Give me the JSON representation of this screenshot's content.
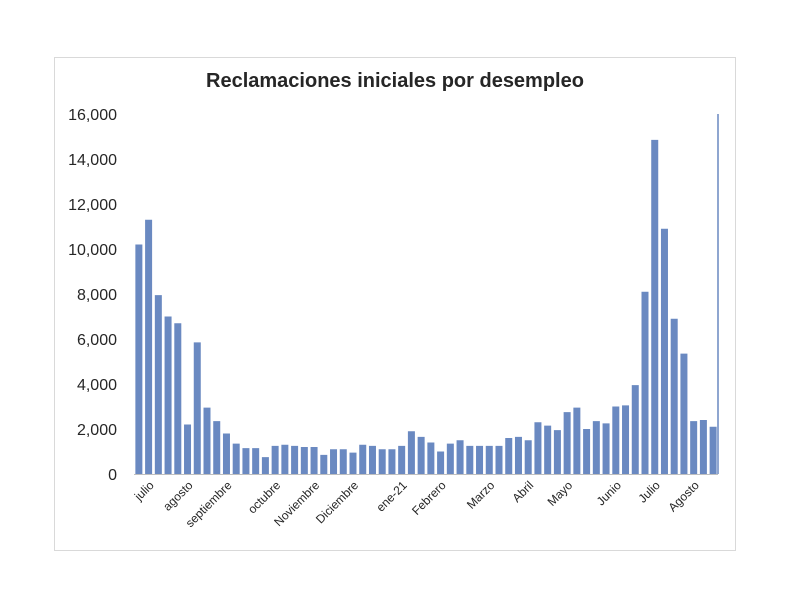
{
  "chart_data": {
    "type": "bar",
    "title": "Reclamaciones iniciales por desempleo",
    "xlabel": "",
    "ylabel": "",
    "ylim": [
      0,
      16000
    ],
    "yticks": [
      0,
      2000,
      4000,
      6000,
      8000,
      10000,
      12000,
      14000,
      16000
    ],
    "ytick_labels": [
      "0",
      "2,000",
      "4,000",
      "6,000",
      "8,000",
      "10,000",
      "12,000",
      "14,000",
      "16,000"
    ],
    "grid": false,
    "legend": "none",
    "bar_color": "#6a89c1",
    "month_labels": [
      {
        "label": "julio",
        "index": 1
      },
      {
        "label": "agosto",
        "index": 5
      },
      {
        "label": "septiembre",
        "index": 9
      },
      {
        "label": "octubre",
        "index": 14
      },
      {
        "label": "Noviembre",
        "index": 18
      },
      {
        "label": "Diciembre",
        "index": 22
      },
      {
        "label": "ene-21",
        "index": 27
      },
      {
        "label": "Febrero",
        "index": 31
      },
      {
        "label": "Marzo",
        "index": 36
      },
      {
        "label": "Abril",
        "index": 40
      },
      {
        "label": "Mayo",
        "index": 44
      },
      {
        "label": "Junio",
        "index": 49
      },
      {
        "label": "Julio",
        "index": 53
      },
      {
        "label": "Agosto",
        "index": 57
      }
    ],
    "values": [
      10200,
      11300,
      7950,
      7000,
      6700,
      2200,
      5850,
      2950,
      2350,
      1800,
      1350,
      1150,
      1150,
      750,
      1250,
      1300,
      1250,
      1200,
      1200,
      850,
      1100,
      1100,
      950,
      1300,
      1250,
      1100,
      1100,
      1250,
      1900,
      1650,
      1400,
      1000,
      1350,
      1500,
      1250,
      1250,
      1250,
      1250,
      1600,
      1650,
      1500,
      2300,
      2150,
      1950,
      2750,
      2950,
      2000,
      2350,
      2250,
      3000,
      3050,
      3950,
      8100,
      14850,
      10900,
      6900,
      5350,
      2350,
      2400,
      2100
    ]
  }
}
